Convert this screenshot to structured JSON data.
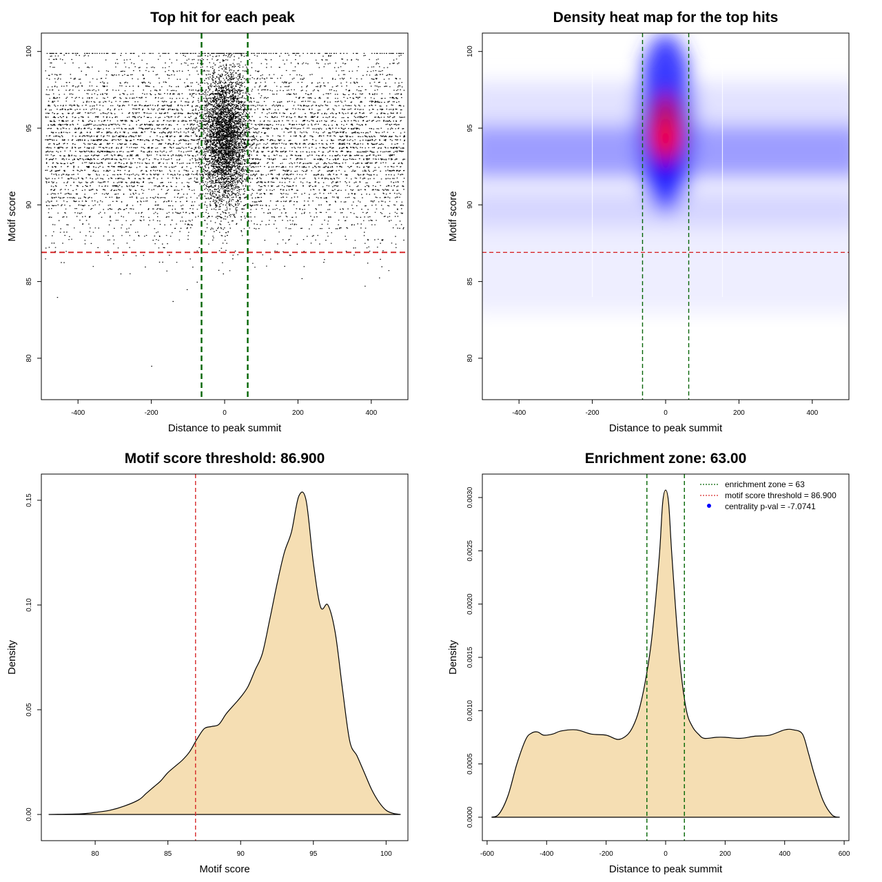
{
  "colors": {
    "frame": "#000000",
    "green_line": "#006400",
    "red_line": "#d62728",
    "fill": "#f5deb3",
    "heat_low": "#ffffff",
    "heat_mid": "#0000ff",
    "heat_high": "#ff0000"
  },
  "chart_data": [
    {
      "type": "scatter",
      "title": "Top hit for each peak",
      "xlabel": "Distance to peak summit",
      "ylabel": "Motif score",
      "xlim": [
        -500,
        500
      ],
      "ylim": [
        77.3,
        101.2
      ],
      "xticks": [
        -400,
        -200,
        0,
        200,
        400
      ],
      "xtick_labels": [
        "-400",
        "-200",
        "0",
        "200",
        "400"
      ],
      "yticks": [
        80,
        85,
        90,
        95,
        100
      ],
      "ytick_labels": [
        "80",
        "85",
        "90",
        "95",
        "100"
      ],
      "vlines": [
        -63,
        63
      ],
      "hline": 86.9,
      "n_background_points": 9000,
      "n_center_points": 3500,
      "x_range": [
        -490,
        490
      ],
      "y_range": [
        77.8,
        99.9
      ],
      "y_peak": 94,
      "center_y_peak": 94.5
    },
    {
      "type": "heatmap",
      "title": "Density heat map for the top hits",
      "xlabel": "Distance to peak summit",
      "ylabel": "Motif score",
      "xlim": [
        -500,
        500
      ],
      "ylim": [
        77.3,
        101.2
      ],
      "xticks": [
        -400,
        -200,
        0,
        200,
        400
      ],
      "xtick_labels": [
        "-400",
        "-200",
        "0",
        "200",
        "400"
      ],
      "yticks": [
        80,
        85,
        90,
        95,
        100
      ],
      "ytick_labels": [
        "80",
        "85",
        "90",
        "95",
        "100"
      ],
      "vlines": [
        -63,
        63
      ],
      "hline": 86.9,
      "hotspot": {
        "x": 0,
        "y": 94.4
      },
      "background_band_y": 93.5
    },
    {
      "type": "area",
      "title": "Motif score threshold: 86.900",
      "xlabel": "Motif score",
      "ylabel": "Density",
      "xlim": [
        76.3,
        101.5
      ],
      "ylim": [
        -0.0125,
        0.1625
      ],
      "xticks": [
        80,
        85,
        90,
        95,
        100
      ],
      "xtick_labels": [
        "80",
        "85",
        "90",
        "95",
        "100"
      ],
      "yticks": [
        0.0,
        0.05,
        0.1,
        0.15
      ],
      "ytick_labels": [
        "0.00",
        "0.05",
        "0.10",
        "0.15"
      ],
      "vline": 86.9,
      "x": [
        76.8,
        79,
        80,
        81,
        82,
        83,
        83.5,
        84,
        84.5,
        85,
        85.5,
        86,
        86.5,
        87,
        87.5,
        88,
        88.5,
        89,
        89.5,
        90,
        90.5,
        91,
        91.5,
        92,
        92.5,
        93,
        93.5,
        94,
        94.5,
        95,
        95.5,
        96,
        96.5,
        97,
        97.5,
        98,
        98.5,
        99,
        99.5,
        100,
        100.5,
        101
      ],
      "y": [
        0.0,
        0.0003,
        0.001,
        0.002,
        0.004,
        0.007,
        0.01,
        0.013,
        0.016,
        0.02,
        0.023,
        0.026,
        0.03,
        0.036,
        0.041,
        0.042,
        0.043,
        0.048,
        0.052,
        0.056,
        0.061,
        0.069,
        0.077,
        0.093,
        0.11,
        0.125,
        0.135,
        0.152,
        0.15,
        0.12,
        0.099,
        0.1,
        0.087,
        0.06,
        0.035,
        0.028,
        0.02,
        0.012,
        0.006,
        0.002,
        0.0005,
        0.0
      ]
    },
    {
      "type": "area",
      "title": "Enrichment zone: 63.00",
      "xlabel": "Distance to peak summit",
      "ylabel": "Density",
      "xlim": [
        -616,
        616
      ],
      "ylim": [
        -0.00022,
        0.00322
      ],
      "xticks": [
        -600,
        -400,
        -200,
        0,
        200,
        400,
        600
      ],
      "xtick_labels": [
        "-600",
        "-400",
        "-200",
        "0",
        "200",
        "400",
        "600"
      ],
      "yticks": [
        0.0,
        0.0005,
        0.001,
        0.0015,
        0.002,
        0.0025,
        0.003
      ],
      "ytick_labels": [
        "0.0000",
        "0.0005",
        "0.0010",
        "0.0015",
        "0.0020",
        "0.0025",
        "0.0030"
      ],
      "vlines": [
        -63,
        63
      ],
      "legend_position": "top-right",
      "legend": [
        {
          "label": "enrichment zone = 63",
          "style": "green-dotted"
        },
        {
          "label": "motif score threshold = 86.900",
          "style": "red-dotted"
        },
        {
          "label": "centrality p-val = -7.0741",
          "style": "blue-dot"
        }
      ],
      "x": [
        -585,
        -560,
        -530,
        -500,
        -470,
        -450,
        -430,
        -410,
        -380,
        -350,
        -300,
        -250,
        -200,
        -160,
        -130,
        -110,
        -90,
        -70,
        -50,
        -35,
        -20,
        -10,
        0,
        10,
        20,
        35,
        50,
        70,
        90,
        110,
        130,
        170,
        200,
        250,
        300,
        350,
        400,
        430,
        460,
        480,
        500,
        530,
        560,
        585
      ],
      "y": [
        0.0,
        3e-05,
        0.0002,
        0.0005,
        0.00073,
        0.00079,
        0.0008,
        0.00077,
        0.00078,
        0.00081,
        0.00082,
        0.00078,
        0.00077,
        0.00073,
        0.00077,
        0.00085,
        0.001,
        0.00125,
        0.0016,
        0.002,
        0.0025,
        0.00295,
        0.00307,
        0.00295,
        0.0025,
        0.0019,
        0.0014,
        0.001,
        0.00085,
        0.00078,
        0.00074,
        0.00075,
        0.00075,
        0.00074,
        0.00076,
        0.00077,
        0.00082,
        0.00082,
        0.00078,
        0.0006,
        0.0004,
        0.00015,
        2e-05,
        0.0
      ]
    }
  ]
}
